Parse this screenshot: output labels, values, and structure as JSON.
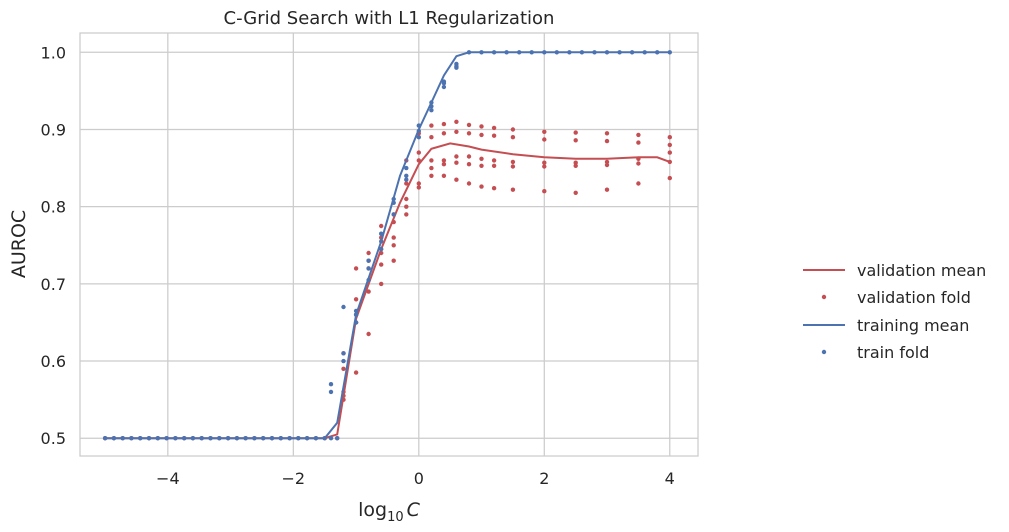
{
  "chart_data": {
    "type": "line",
    "title": "C-Grid Search with L1 Regularization",
    "xlabel_prefix": "log",
    "xlabel_sub": "10",
    "xlabel_var": "C",
    "ylabel": "AUROC",
    "xlim": [
      -5.4,
      4.45
    ],
    "ylim": [
      0.477,
      1.025
    ],
    "xticks": [
      -4,
      -2,
      0,
      2,
      4
    ],
    "xtick_labels": [
      "−4",
      "−2",
      "0",
      "2",
      "4"
    ],
    "yticks": [
      0.5,
      0.6,
      0.7,
      0.8,
      0.9,
      1.0
    ],
    "ytick_labels": [
      "0.5",
      "0.6",
      "0.7",
      "0.8",
      "0.9",
      "1.0"
    ],
    "grid": true,
    "legend_placement": "right",
    "colors": {
      "validation": "#c44e52",
      "training": "#4c72b0",
      "grid": "#cccccc"
    },
    "series": [
      {
        "name": "validation mean",
        "kind": "line",
        "color": "#c44e52",
        "x": [
          -5.0,
          -1.5,
          -1.3,
          -1.0,
          -0.6,
          -0.3,
          0.0,
          0.2,
          0.5,
          0.8,
          1.0,
          1.5,
          2.0,
          2.5,
          3.0,
          3.5,
          3.8,
          4.0
        ],
        "y": [
          0.5,
          0.5,
          0.505,
          0.655,
          0.745,
          0.805,
          0.855,
          0.875,
          0.882,
          0.878,
          0.874,
          0.868,
          0.864,
          0.862,
          0.862,
          0.864,
          0.864,
          0.858
        ]
      },
      {
        "name": "validation fold",
        "kind": "points",
        "color": "#c44e52",
        "folds": [
          {
            "x": [
              -1.2,
              -1.0,
              -0.8,
              -0.6,
              -0.4,
              -0.2,
              0.0,
              0.2,
              0.4,
              0.6,
              0.8,
              1.0,
              1.2,
              1.5,
              2.0,
              2.5,
              3.0,
              3.5,
              4.0
            ],
            "y": [
              0.61,
              0.72,
              0.74,
              0.775,
              0.79,
              0.86,
              0.895,
              0.905,
              0.907,
              0.91,
              0.906,
              0.904,
              0.902,
              0.9,
              0.897,
              0.896,
              0.895,
              0.893,
              0.89
            ]
          },
          {
            "x": [
              -1.2,
              -1.0,
              -0.8,
              -0.6,
              -0.4,
              -0.2,
              0.0,
              0.2,
              0.4,
              0.6,
              0.8,
              1.0,
              1.2,
              1.5,
              2.0,
              2.5,
              3.0,
              3.5,
              4.0
            ],
            "y": [
              0.59,
              0.68,
              0.73,
              0.76,
              0.76,
              0.83,
              0.87,
              0.89,
              0.895,
              0.897,
              0.895,
              0.893,
              0.892,
              0.89,
              0.887,
              0.886,
              0.885,
              0.883,
              0.88
            ]
          },
          {
            "x": [
              -1.2,
              -1.0,
              -0.8,
              -0.6,
              -0.4,
              -0.2,
              0.0,
              0.2,
              0.4,
              0.6,
              0.8,
              1.0,
              1.2,
              1.5,
              2.0,
              2.5,
              3.0,
              3.5,
              4.0
            ],
            "y": [
              0.56,
              0.66,
              0.72,
              0.74,
              0.78,
              0.81,
              0.86,
              0.86,
              0.86,
              0.865,
              0.865,
              0.862,
              0.86,
              0.858,
              0.857,
              0.857,
              0.858,
              0.862,
              0.87
            ]
          },
          {
            "x": [
              -1.2,
              -1.0,
              -0.8,
              -0.6,
              -0.4,
              -0.2,
              0.0,
              0.2,
              0.4,
              0.6,
              0.8,
              1.0,
              1.2,
              1.5,
              2.0,
              2.5,
              3.0,
              3.5,
              4.0
            ],
            "y": [
              0.55,
              0.65,
              0.69,
              0.725,
              0.75,
              0.8,
              0.83,
              0.85,
              0.855,
              0.857,
              0.855,
              0.853,
              0.853,
              0.852,
              0.852,
              0.853,
              0.854,
              0.856,
              0.858
            ]
          },
          {
            "x": [
              -1.2,
              -1.0,
              -0.8,
              -0.6,
              -0.4,
              -0.2,
              0.0,
              0.2,
              0.4,
              0.6,
              0.8,
              1.0,
              1.2,
              1.5,
              2.0,
              2.5,
              3.0,
              3.5,
              4.0
            ],
            "y": [
              0.555,
              0.585,
              0.635,
              0.7,
              0.73,
              0.79,
              0.825,
              0.84,
              0.84,
              0.835,
              0.83,
              0.826,
              0.824,
              0.822,
              0.82,
              0.818,
              0.822,
              0.83,
              0.837
            ]
          }
        ]
      },
      {
        "name": "training mean",
        "kind": "line",
        "color": "#4c72b0",
        "x": [
          -5.0,
          -1.5,
          -1.3,
          -1.0,
          -0.6,
          -0.3,
          0.0,
          0.2,
          0.4,
          0.6,
          0.8,
          1.0,
          2.0,
          3.0,
          4.0
        ],
        "y": [
          0.5,
          0.5,
          0.52,
          0.66,
          0.755,
          0.84,
          0.9,
          0.935,
          0.97,
          0.995,
          1.0,
          1.0,
          1.0,
          1.0,
          1.0
        ]
      },
      {
        "name": "train fold",
        "kind": "points",
        "color": "#4c72b0",
        "folds": [
          {
            "x": [
              -1.4,
              -1.2,
              -1.0,
              -0.8,
              -0.6,
              -0.4,
              -0.2,
              0.0,
              0.2,
              0.4,
              0.6
            ],
            "y": [
              0.57,
              0.61,
              0.665,
              0.72,
              0.765,
              0.81,
              0.85,
              0.905,
              0.935,
              0.962,
              0.985
            ]
          },
          {
            "x": [
              -1.4,
              -1.2,
              -1.0,
              -0.8,
              -0.6,
              -0.4,
              -0.2,
              0.0,
              0.2,
              0.4,
              0.6
            ],
            "y": [
              0.56,
              0.67,
              0.66,
              0.705,
              0.755,
              0.805,
              0.84,
              0.898,
              0.93,
              0.96,
              0.982
            ]
          },
          {
            "x": [
              -1.4,
              -1.2,
              -1.0,
              -0.8,
              -0.6,
              -0.4,
              -0.2,
              0.0,
              0.2,
              0.4,
              0.6
            ],
            "y": [
              0.5,
              0.6,
              0.65,
              0.73,
              0.745,
              0.79,
              0.835,
              0.89,
              0.925,
              0.955,
              0.98
            ]
          }
        ]
      }
    ],
    "flat_x": [
      -5.0,
      -4.86,
      -4.72,
      -4.58,
      -4.44,
      -4.3,
      -4.16,
      -4.02,
      -3.88,
      -3.74,
      -3.6,
      -3.46,
      -3.32,
      -3.18,
      -3.04,
      -2.9,
      -2.76,
      -2.62,
      -2.48,
      -2.34,
      -2.2,
      -2.06,
      -1.92,
      -1.78,
      -1.64,
      -1.5,
      -1.3
    ],
    "flat_y": 0.5,
    "plateau_x": [
      0.8,
      1.0,
      1.2,
      1.4,
      1.6,
      1.8,
      2.0,
      2.2,
      2.4,
      2.6,
      2.8,
      3.0,
      3.2,
      3.4,
      3.6,
      3.8,
      4.0
    ],
    "plateau_y": 1.0
  }
}
